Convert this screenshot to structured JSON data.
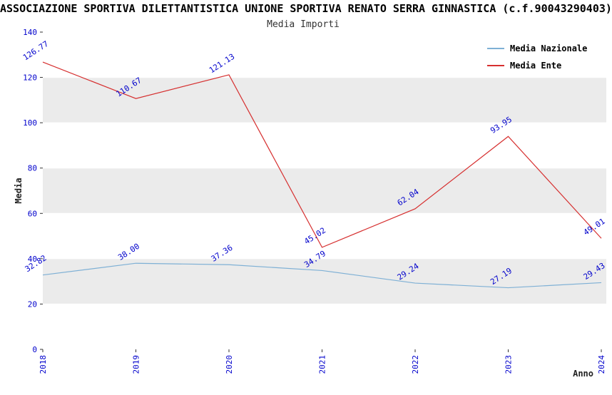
{
  "header": {
    "title": "ASSOCIAZIONE SPORTIVA DILETTANTISTICA UNIONE SPORTIVA RENATO SERRA GINNASTICA (c.f.90043290403)",
    "subtitle": "Media Importi"
  },
  "chart_data": {
    "type": "line",
    "x": [
      "2018",
      "2019",
      "2020",
      "2021",
      "2022",
      "2023",
      "2024"
    ],
    "series": [
      {
        "name": "Media Nazionale",
        "color": "#7EB0D5",
        "values": [
          32.82,
          38.0,
          37.36,
          34.79,
          29.24,
          27.19,
          29.43
        ]
      },
      {
        "name": "Media Ente",
        "color": "#D62F2F",
        "values": [
          126.77,
          110.67,
          121.13,
          45.02,
          62.04,
          93.95,
          49.01
        ]
      }
    ],
    "title": "Media Importi",
    "xlabel": "Anno",
    "ylabel": "Media",
    "ylim": [
      0,
      140
    ],
    "yticks": [
      0,
      20,
      40,
      60,
      80,
      100,
      120,
      140
    ],
    "legend_position": "top-right",
    "grid": true,
    "band_color": "#ebebeb",
    "axis_tick_label_color": "#0000CC",
    "data_label_color": "#0000CC"
  }
}
